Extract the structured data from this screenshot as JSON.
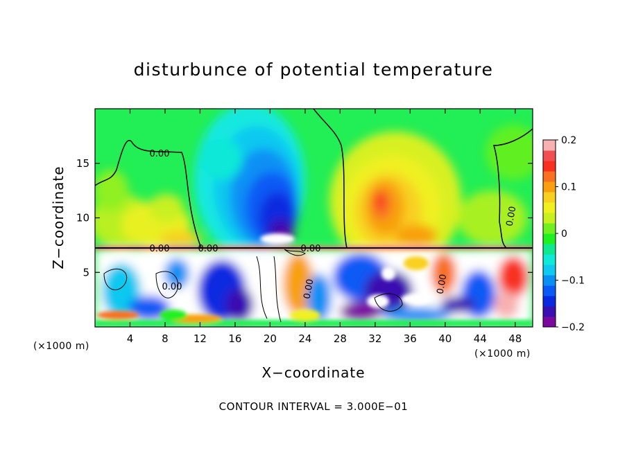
{
  "chart_data": {
    "type": "heatmap",
    "title": "disturbunce of potential temperature",
    "xlabel": "X−coordinate",
    "ylabel": "Z−coordinate",
    "x_unit": "(×1000 m)",
    "z_unit": "(×1000 m)",
    "xlim": [
      0,
      50
    ],
    "ylim": [
      0,
      20
    ],
    "x_ticks": [
      4,
      8,
      12,
      16,
      20,
      24,
      28,
      32,
      36,
      40,
      44,
      48
    ],
    "y_ticks": [
      5,
      10,
      15
    ],
    "colorbar": {
      "range": [
        -0.2,
        0.2
      ],
      "tick_values": [
        0.2,
        0.1,
        0,
        -0.1,
        -0.2
      ],
      "tick_labels": [
        "0.2",
        "0.1",
        "0",
        "−0.1",
        "−0.2"
      ],
      "colors": [
        "#7a0a9e",
        "#3a10b0",
        "#0a2ae0",
        "#0a5af5",
        "#0a90f5",
        "#10c8f0",
        "#10e8d8",
        "#10e890",
        "#20f020",
        "#70f020",
        "#c8f020",
        "#f0f020",
        "#f8d020",
        "#f8a010",
        "#f87020",
        "#f83020",
        "#f05050",
        "#f8b0b0"
      ]
    },
    "contour_labels": [
      "0.00",
      "0.00",
      "0.00",
      "0.00",
      "0.00",
      "0.00",
      "0.00",
      "0.00"
    ],
    "grid": false,
    "legend": "colorbar right"
  },
  "footer": "CONTOUR INTERVAL = 3.000E−01"
}
